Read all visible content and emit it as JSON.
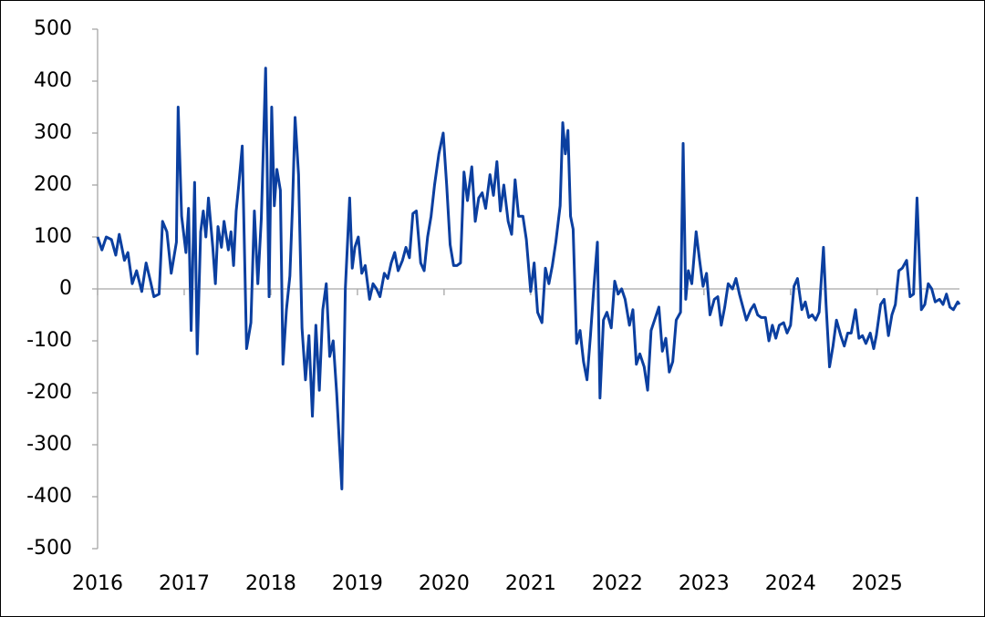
{
  "chart_data": {
    "type": "line",
    "x": [
      2016.0,
      2016.05,
      2016.1,
      2016.16,
      2016.21,
      2016.25,
      2016.31,
      2016.35,
      2016.4,
      2016.45,
      2016.51,
      2016.56,
      2016.61,
      2016.65,
      2016.71,
      2016.75,
      2016.8,
      2016.85,
      2016.91,
      2016.93,
      2016.97,
      2017.02,
      2017.05,
      2017.08,
      2017.12,
      2017.15,
      2017.19,
      2017.22,
      2017.25,
      2017.28,
      2017.33,
      2017.36,
      2017.39,
      2017.43,
      2017.46,
      2017.51,
      2017.54,
      2017.57,
      2017.6,
      2017.63,
      2017.67,
      2017.72,
      2017.77,
      2017.81,
      2017.85,
      2017.89,
      2017.94,
      2017.98,
      2018.01,
      2018.04,
      2018.07,
      2018.11,
      2018.14,
      2018.18,
      2018.22,
      2018.25,
      2018.28,
      2018.32,
      2018.36,
      2018.4,
      2018.44,
      2018.48,
      2018.52,
      2018.56,
      2018.6,
      2018.64,
      2018.68,
      2018.72,
      2018.76,
      2018.82,
      2018.86,
      2018.91,
      2018.94,
      2018.97,
      2019.01,
      2019.05,
      2019.09,
      2019.14,
      2019.18,
      2019.22,
      2019.26,
      2019.31,
      2019.35,
      2019.39,
      2019.43,
      2019.47,
      2019.52,
      2019.56,
      2019.6,
      2019.64,
      2019.68,
      2019.73,
      2019.77,
      2019.81,
      2019.85,
      2019.89,
      2019.94,
      2019.99,
      2020.03,
      2020.07,
      2020.11,
      2020.15,
      2020.19,
      2020.23,
      2020.27,
      2020.32,
      2020.36,
      2020.4,
      2020.44,
      2020.48,
      2020.53,
      2020.57,
      2020.61,
      2020.65,
      2020.69,
      2020.74,
      2020.78,
      2020.82,
      2020.86,
      2020.91,
      2020.95,
      2021.0,
      2021.04,
      2021.08,
      2021.13,
      2021.17,
      2021.21,
      2021.25,
      2021.29,
      2021.34,
      2021.37,
      2021.4,
      2021.43,
      2021.46,
      2021.49,
      2021.53,
      2021.57,
      2021.61,
      2021.65,
      2021.69,
      2021.73,
      2021.77,
      2021.8,
      2021.84,
      2021.88,
      2021.93,
      2021.97,
      2022.01,
      2022.05,
      2022.09,
      2022.14,
      2022.18,
      2022.22,
      2022.26,
      2022.31,
      2022.35,
      2022.39,
      2022.43,
      2022.48,
      2022.52,
      2022.56,
      2022.6,
      2022.64,
      2022.68,
      2022.73,
      2022.76,
      2022.79,
      2022.82,
      2022.86,
      2022.91,
      2022.95,
      2022.99,
      2023.03,
      2023.07,
      2023.12,
      2023.16,
      2023.2,
      2023.24,
      2023.28,
      2023.33,
      2023.37,
      2023.41,
      2023.45,
      2023.49,
      2023.54,
      2023.58,
      2023.62,
      2023.66,
      2023.71,
      2023.75,
      2023.79,
      2023.83,
      2023.87,
      2023.92,
      2023.96,
      2024.0,
      2024.04,
      2024.08,
      2024.13,
      2024.17,
      2024.21,
      2024.25,
      2024.29,
      2024.33,
      2024.38,
      2024.41,
      2024.45,
      2024.49,
      2024.53,
      2024.58,
      2024.62,
      2024.66,
      2024.7,
      2024.75,
      2024.79,
      2024.83,
      2024.87,
      2024.92,
      2024.96,
      2024.99,
      2025.04,
      2025.08,
      2025.13,
      2025.17,
      2025.21,
      2025.25,
      2025.29,
      2025.34,
      2025.38,
      2025.42,
      2025.46,
      2025.51,
      2025.55,
      2025.59,
      2025.63,
      2025.67,
      2025.72,
      2025.76,
      2025.8,
      2025.84,
      2025.88,
      2025.93,
      2025.95
    ],
    "series": [
      {
        "color": "#0b3fa0",
        "values": [
          100,
          75,
          100,
          95,
          65,
          105,
          55,
          70,
          10,
          35,
          -5,
          50,
          15,
          -15,
          -10,
          130,
          110,
          30,
          90,
          350,
          140,
          70,
          155,
          -80,
          205,
          -125,
          110,
          150,
          100,
          175,
          80,
          10,
          120,
          80,
          130,
          75,
          110,
          45,
          150,
          200,
          275,
          -115,
          -65,
          150,
          10,
          135,
          425,
          -15,
          350,
          160,
          230,
          190,
          -145,
          -40,
          25,
          160,
          330,
          220,
          -75,
          -175,
          -90,
          -245,
          -70,
          -195,
          -40,
          10,
          -130,
          -100,
          -200,
          -385,
          0,
          175,
          40,
          80,
          100,
          30,
          45,
          -20,
          10,
          0,
          -15,
          30,
          20,
          50,
          70,
          35,
          55,
          80,
          60,
          145,
          150,
          50,
          35,
          100,
          140,
          200,
          260,
          300,
          200,
          85,
          45,
          45,
          50,
          225,
          170,
          235,
          130,
          175,
          185,
          155,
          220,
          180,
          245,
          150,
          200,
          130,
          105,
          210,
          140,
          140,
          95,
          -5,
          50,
          -45,
          -65,
          40,
          10,
          45,
          90,
          160,
          320,
          260,
          305,
          140,
          115,
          -105,
          -80,
          -140,
          -175,
          -90,
          5,
          90,
          -210,
          -60,
          -45,
          -75,
          15,
          -10,
          0,
          -20,
          -70,
          -40,
          -145,
          -125,
          -150,
          -195,
          -80,
          -60,
          -35,
          -120,
          -95,
          -160,
          -140,
          -60,
          -45,
          280,
          -20,
          35,
          10,
          110,
          55,
          5,
          30,
          -50,
          -20,
          -15,
          -70,
          -35,
          10,
          0,
          20,
          -10,
          -35,
          -60,
          -40,
          -30,
          -50,
          -55,
          -55,
          -100,
          -70,
          -95,
          -70,
          -65,
          -85,
          -70,
          5,
          20,
          -40,
          -25,
          -55,
          -50,
          -60,
          -45,
          80,
          -30,
          -150,
          -110,
          -60,
          -90,
          -110,
          -85,
          -85,
          -40,
          -95,
          -90,
          -105,
          -85,
          -115,
          -90,
          -30,
          -20,
          -90,
          -50,
          -30,
          35,
          40,
          55,
          -15,
          -10,
          175,
          -40,
          -30,
          10,
          0,
          -25,
          -20,
          -30,
          -10,
          -35,
          -40,
          -25,
          -30
        ]
      }
    ],
    "xlim": [
      2016,
      2025.95
    ],
    "xticks": [
      2016,
      2017,
      2018,
      2019,
      2020,
      2021,
      2022,
      2023,
      2024,
      2025
    ],
    "ylim": [
      -500,
      500
    ],
    "yticks": [
      -500,
      -400,
      -300,
      -200,
      -100,
      0,
      100,
      200,
      300,
      400,
      500
    ]
  }
}
